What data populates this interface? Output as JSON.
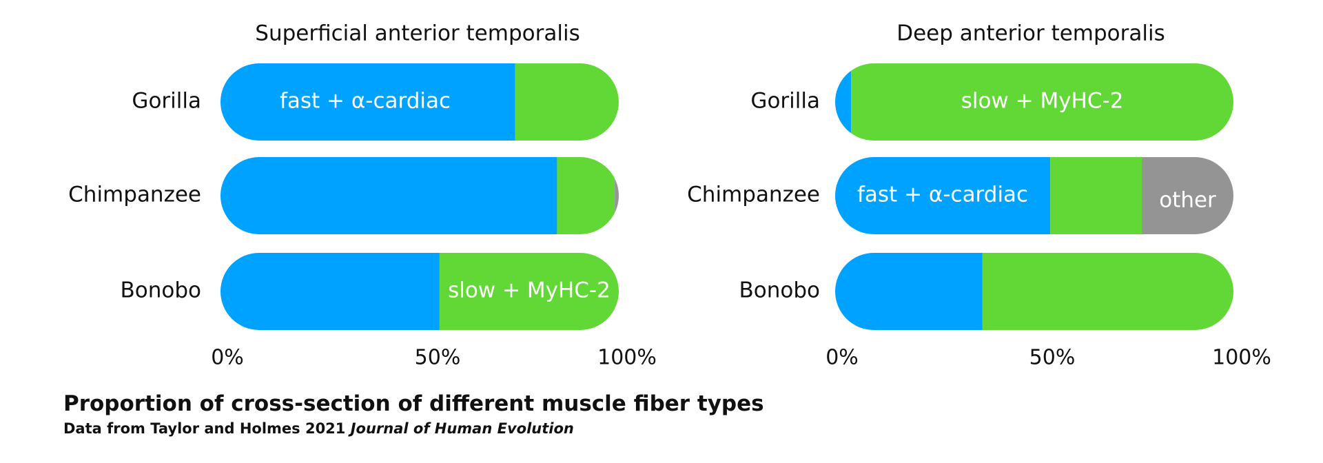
{
  "chart_data": [
    {
      "type": "bar",
      "orientation": "horizontal",
      "stacked": true,
      "title": "Superficial anterior temporalis",
      "categories": [
        "Gorilla",
        "Chimpanzee",
        "Bonobo"
      ],
      "xlim": [
        0,
        100
      ],
      "xticks": [
        "0%",
        "50%",
        "100%"
      ],
      "grid": false,
      "series": [
        {
          "key": "fast",
          "color": "#00a2ff",
          "values": [
            74,
            84.5,
            55
          ]
        },
        {
          "key": "slow",
          "color": "#62d836",
          "values": [
            26,
            14.5,
            45
          ]
        },
        {
          "key": "other",
          "color": "#949494",
          "values": [
            0,
            1,
            0
          ]
        }
      ],
      "segment_labels": [
        {
          "category": 0,
          "series": 0,
          "text": "fast + α-cardiac"
        },
        {
          "category": 2,
          "series": 1,
          "text": "slow + MyHC-2"
        }
      ]
    },
    {
      "type": "bar",
      "orientation": "horizontal",
      "stacked": true,
      "title": "Deep anterior temporalis",
      "categories": [
        "Gorilla",
        "Chimpanzee",
        "Bonobo"
      ],
      "xlim": [
        0,
        100
      ],
      "xticks": [
        "0%",
        "50%",
        "100%"
      ],
      "grid": false,
      "series": [
        {
          "key": "fast",
          "color": "#00a2ff",
          "values": [
            4,
            54,
            37
          ]
        },
        {
          "key": "slow",
          "color": "#62d836",
          "values": [
            96,
            23,
            63
          ]
        },
        {
          "key": "other",
          "color": "#949494",
          "values": [
            0,
            23,
            0
          ]
        }
      ],
      "segment_labels": [
        {
          "category": 0,
          "series": 1,
          "text": "slow + MyHC-2"
        },
        {
          "category": 1,
          "series": 0,
          "text": "fast + α-cardiac"
        },
        {
          "category": 1,
          "series": 2,
          "text": "other"
        }
      ]
    }
  ],
  "caption": {
    "title": "Proportion of cross-section of different muscle fiber types",
    "source_prefix": "Data from Taylor and Holmes 2021 ",
    "source_journal": "Journal of Human Evolution"
  }
}
